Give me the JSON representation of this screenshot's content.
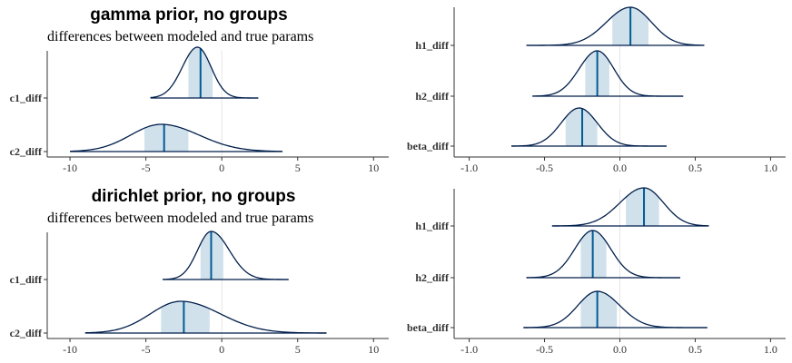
{
  "colors": {
    "fill": "#d1e1ec",
    "line": "#011f4b",
    "median": "#005b96",
    "zero": "#e5e5e5",
    "axis": "#333333"
  },
  "chart_data": [
    {
      "type": "density",
      "title": "gamma prior, no groups",
      "subtitle": "differences between modeled and true params",
      "xlim": [
        -11.5,
        11
      ],
      "xticks": [
        -10,
        -5,
        0,
        5,
        10
      ],
      "xtick_labels": [
        "-10",
        "-5",
        "0",
        "5",
        "10"
      ],
      "series": [
        {
          "name": "c1_diff",
          "min": -4.7,
          "max": 2.4,
          "q_lo": -2.2,
          "q_hi": -0.6,
          "median": -1.4,
          "mode": -1.6,
          "sd_left": 1.0,
          "sd_right": 0.9
        },
        {
          "name": "c2_diff",
          "min": -10.0,
          "max": 4.0,
          "q_lo": -5.1,
          "q_hi": -2.2,
          "median": -3.8,
          "mode": -4.0,
          "sd_left": 2.0,
          "sd_right": 2.5
        }
      ]
    },
    {
      "type": "density",
      "title": "",
      "subtitle": "",
      "xlim": [
        -1.1,
        1.1
      ],
      "xticks": [
        -1.0,
        -0.5,
        0.0,
        0.5,
        1.0
      ],
      "xtick_labels": [
        "-1.0",
        "-0.5",
        "0.0",
        "0.5",
        "1.0"
      ],
      "series": [
        {
          "name": "h1_diff",
          "min": -0.62,
          "max": 0.56,
          "q_lo": -0.05,
          "q_hi": 0.19,
          "median": 0.07,
          "mode": 0.07,
          "sd_left": 0.16,
          "sd_right": 0.14
        },
        {
          "name": "h2_diff",
          "min": -0.58,
          "max": 0.42,
          "q_lo": -0.23,
          "q_hi": -0.07,
          "median": -0.15,
          "mode": -0.15,
          "sd_left": 0.12,
          "sd_right": 0.11
        },
        {
          "name": "beta_diff",
          "min": -0.72,
          "max": 0.31,
          "q_lo": -0.36,
          "q_hi": -0.15,
          "median": -0.25,
          "mode": -0.27,
          "sd_left": 0.12,
          "sd_right": 0.12
        }
      ]
    },
    {
      "type": "density",
      "title": "dirichlet prior, no groups",
      "subtitle": "differences between modeled and true params",
      "xlim": [
        -11.5,
        11
      ],
      "xticks": [
        -10,
        -5,
        0,
        5,
        10
      ],
      "xtick_labels": [
        "-10",
        "-5",
        "0",
        "5",
        "10"
      ],
      "series": [
        {
          "name": "c1_diff",
          "min": -3.9,
          "max": 4.4,
          "q_lo": -1.4,
          "q_hi": 0.1,
          "median": -0.7,
          "mode": -0.7,
          "sd_left": 0.9,
          "sd_right": 1.2
        },
        {
          "name": "c2_diff",
          "min": -9.0,
          "max": 6.9,
          "q_lo": -4.0,
          "q_hi": -0.8,
          "median": -2.5,
          "mode": -2.7,
          "sd_left": 2.0,
          "sd_right": 2.6
        }
      ]
    },
    {
      "type": "density",
      "title": "",
      "subtitle": "",
      "xlim": [
        -1.1,
        1.1
      ],
      "xticks": [
        -1.0,
        -0.5,
        0.0,
        0.5,
        1.0
      ],
      "xtick_labels": [
        "-1.0",
        "-0.5",
        "0.0",
        "0.5",
        "1.0"
      ],
      "series": [
        {
          "name": "h1_diff",
          "min": -0.45,
          "max": 0.59,
          "q_lo": 0.04,
          "q_hi": 0.26,
          "median": 0.16,
          "mode": 0.16,
          "sd_left": 0.16,
          "sd_right": 0.13
        },
        {
          "name": "h2_diff",
          "min": -0.62,
          "max": 0.4,
          "q_lo": -0.26,
          "q_hi": -0.09,
          "median": -0.18,
          "mode": -0.18,
          "sd_left": 0.12,
          "sd_right": 0.12
        },
        {
          "name": "beta_diff",
          "min": -0.64,
          "max": 0.58,
          "q_lo": -0.26,
          "q_hi": -0.02,
          "median": -0.15,
          "mode": -0.15,
          "sd_left": 0.13,
          "sd_right": 0.15
        }
      ]
    }
  ]
}
